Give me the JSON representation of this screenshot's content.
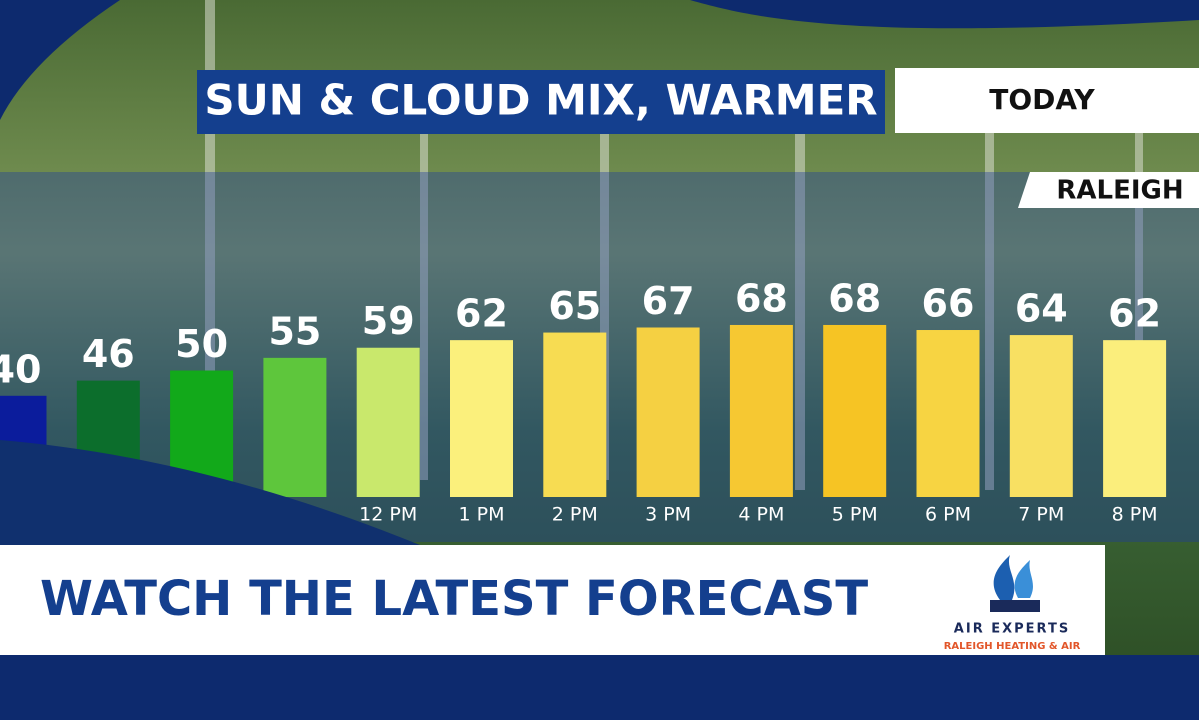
{
  "chart_data": {
    "type": "bar",
    "title": "SUN & CLOUD MIX, WARMER",
    "period": "TODAY",
    "location": "RALEIGH",
    "categories": [
      null,
      null,
      null,
      null,
      "12 PM",
      "1 PM",
      "2 PM",
      "3 PM",
      "4 PM",
      "5 PM",
      "6 PM",
      "7 PM",
      "8 PM"
    ],
    "values": [
      40,
      46,
      50,
      55,
      59,
      62,
      65,
      67,
      68,
      68,
      66,
      64,
      62
    ],
    "colors": [
      "#0b1c9c",
      "#0c6e2c",
      "#12a91a",
      "#5ec63c",
      "#c9e86c",
      "#fbf07c",
      "#f7dc52",
      "#f5d042",
      "#f6c832",
      "#f6c424",
      "#f7d442",
      "#f8e062",
      "#fbee7c"
    ]
  },
  "banner": {
    "text": "WATCH THE LATEST FORECAST"
  },
  "sponsor": {
    "name": "AIR EXPERTS",
    "tagline": "RALEIGH HEATING & AIR"
  }
}
